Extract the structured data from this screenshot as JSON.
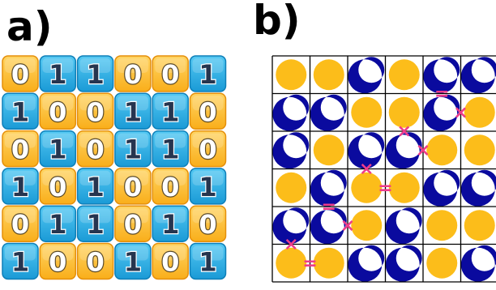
{
  "panel_a": {
    "label": "a)",
    "grid": [
      [
        "0",
        "1",
        "1",
        "0",
        "0",
        "1"
      ],
      [
        "1",
        "0",
        "0",
        "1",
        "1",
        "0"
      ],
      [
        "0",
        "1",
        "0",
        "1",
        "1",
        "0"
      ],
      [
        "1",
        "0",
        "1",
        "0",
        "0",
        "1"
      ],
      [
        "0",
        "1",
        "1",
        "0",
        "1",
        "0"
      ],
      [
        "1",
        "0",
        "0",
        "1",
        "0",
        "1"
      ]
    ]
  },
  "panel_b": {
    "label": "b)",
    "grid": [
      [
        "sun",
        "sun",
        "moon",
        "sun",
        "moon",
        "moon"
      ],
      [
        "moon",
        "moon",
        "sun",
        "sun",
        "moon",
        "sun"
      ],
      [
        "moon",
        "sun",
        "moon",
        "moon",
        "sun",
        "sun"
      ],
      [
        "sun",
        "moon",
        "sun",
        "sun",
        "moon",
        "moon"
      ],
      [
        "moon",
        "moon",
        "sun",
        "moon",
        "sun",
        "sun"
      ],
      [
        "sun",
        "sun",
        "moon",
        "moon",
        "sun",
        "moon"
      ]
    ],
    "constraints": [
      {
        "r1": 0,
        "c1": 4,
        "r2": 1,
        "c2": 4,
        "sign": "="
      },
      {
        "r1": 1,
        "c1": 4,
        "r2": 1,
        "c2": 5,
        "sign": "×"
      },
      {
        "r1": 1,
        "c1": 3,
        "r2": 2,
        "c2": 3,
        "sign": "×"
      },
      {
        "r1": 2,
        "c1": 3,
        "r2": 2,
        "c2": 4,
        "sign": "×"
      },
      {
        "r1": 2,
        "c1": 2,
        "r2": 3,
        "c2": 2,
        "sign": "×"
      },
      {
        "r1": 3,
        "c1": 2,
        "r2": 3,
        "c2": 3,
        "sign": "="
      },
      {
        "r1": 3,
        "c1": 1,
        "r2": 4,
        "c2": 1,
        "sign": "="
      },
      {
        "r1": 4,
        "c1": 1,
        "r2": 4,
        "c2": 2,
        "sign": "×"
      },
      {
        "r1": 4,
        "c1": 0,
        "r2": 5,
        "c2": 0,
        "sign": "×"
      },
      {
        "r1": 5,
        "c1": 0,
        "r2": 5,
        "c2": 1,
        "sign": "="
      }
    ]
  },
  "colors": {
    "zero_tile": "#f9ae1a",
    "zero_tile_light": "#ffd565",
    "one_tile": "#1a9ad6",
    "one_tile_light": "#55c9f3",
    "sun": "#fcbd1a",
    "moon": "#0a0a9e",
    "constraint": "#ee3c8b",
    "grid_line": "#000000"
  }
}
